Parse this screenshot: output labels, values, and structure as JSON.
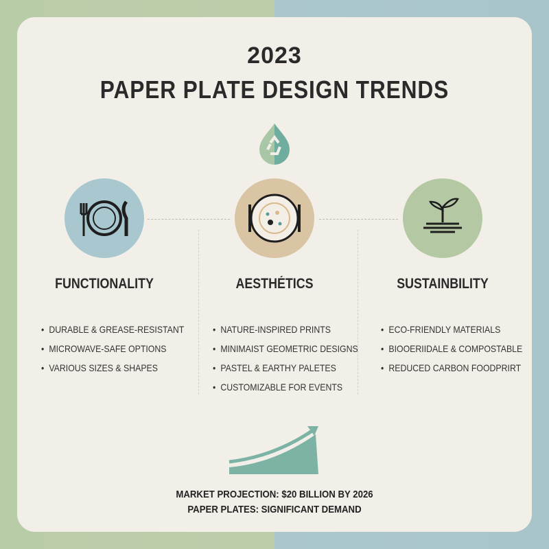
{
  "title": {
    "year": "2023",
    "main": "PAPER PLATE DESIGN TRENDS"
  },
  "colors": {
    "green": "#b9cca8",
    "blue": "#a8c5cc",
    "tan": "#d9c4a4",
    "teal": "#6fae9e",
    "card": "#f1efe8"
  },
  "icons": {
    "top": "recycle-drop-icon",
    "functionality": "plate-fork-knife-icon",
    "aesthetics": "decorated-plate-icon",
    "sustainability": "sprout-plate-icon",
    "market": "rising-arrow-chart-icon"
  },
  "columns": [
    {
      "heading": "FUNCTIONALITY",
      "items": [
        "DURABLE & GREASE-RESISTANT",
        "MICROWAVE-SAFE OPTIONS",
        "VARIOUS SIZES & SHAPES"
      ]
    },
    {
      "heading": "AESTHÉTICS",
      "items": [
        "NATURE-INSPIRED PRINTS",
        "MINIMAIST GEOMETRIC DESIGNS",
        "PASTEL & EARTHY PALETES",
        "CUSTOMIZABLE FOR EVENTS"
      ]
    },
    {
      "heading": "SUSTAINBILITY",
      "items": [
        "ECO-FRIENDLY MATERIALS",
        "BIOOERIIDALE & COMPOSTABLE",
        "REDUCED CARBON FOODPRIRT"
      ]
    }
  ],
  "footer": {
    "line1": "MARKET PROJECTION: $20 BILLION BY 2026",
    "line2": "PAPER PLATES: SIGNIFICANT DEMAND"
  }
}
